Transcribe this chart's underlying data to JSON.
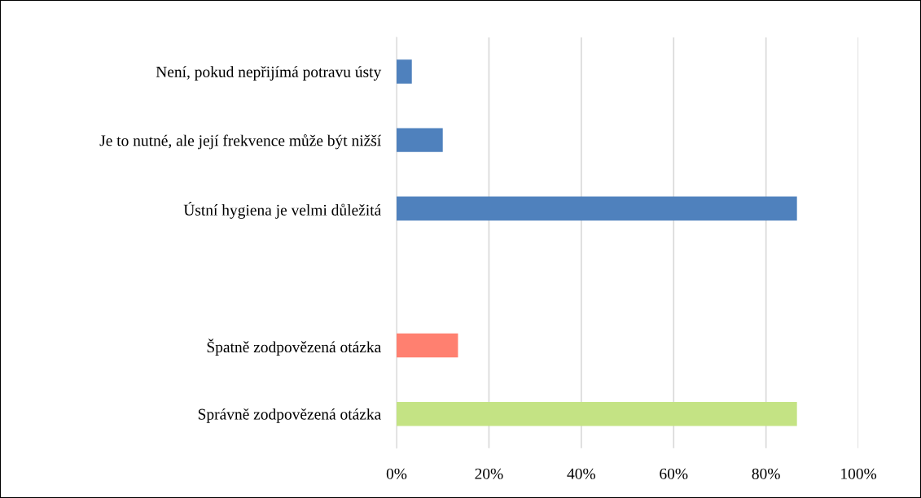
{
  "chart_data": {
    "type": "bar",
    "orientation": "horizontal",
    "categories": [
      "Není, pokud nepřijímá potravu ústy",
      "Je to nutné, ale její frekvence může být nižší",
      "Ústní hygiena je velmi důležitá",
      null,
      "Špatně zodpovězená otázka",
      "Správně zodpovězená otázka"
    ],
    "values": [
      3.3,
      10,
      86.7,
      null,
      13.3,
      86.7
    ],
    "colors": [
      "#4f81bd",
      "#4f81bd",
      "#4f81bd",
      null,
      "#ff8070",
      "#c4e384"
    ],
    "xlim": [
      0,
      100
    ],
    "xticks": [
      {
        "value": 0,
        "label": "0%"
      },
      {
        "value": 20,
        "label": "20%"
      },
      {
        "value": 40,
        "label": "40%"
      },
      {
        "value": 60,
        "label": "60%"
      },
      {
        "value": 80,
        "label": "80%"
      },
      {
        "value": 100,
        "label": "100%"
      }
    ],
    "grid": "x",
    "legend": false
  }
}
